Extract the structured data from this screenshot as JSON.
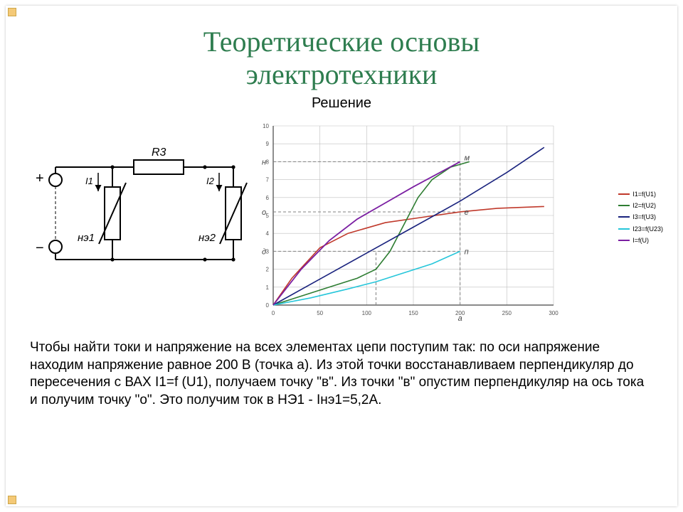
{
  "title": {
    "line1": "Теоретические основы",
    "line2": "электротехники",
    "color": "#2e7d4f",
    "fontsize": 40
  },
  "subtitle": "Решение",
  "circuit": {
    "labels": {
      "R3": "R3",
      "ne1": "нэ1",
      "ne2": "нэ2",
      "I1": "I1",
      "I2": "I2",
      "plus": "+",
      "minus": "−"
    },
    "stroke": "#000000",
    "stroke_width": 2
  },
  "chart": {
    "type": "line",
    "xlim": [
      0,
      300
    ],
    "ylim": [
      0,
      10
    ],
    "xtick_step": 50,
    "ytick_step": 1,
    "grid_color": "#bfbfbf",
    "axis_color": "#444444",
    "background_color": "#ffffff",
    "label_fontsize": 8,
    "dash_color": "#808080",
    "annotations": {
      "H": "н",
      "M": "м",
      "O": "о",
      "e": "е",
      "d": "д",
      "a": "а",
      "n": "п"
    },
    "dash_lines": [
      {
        "y": 8.0,
        "x_to": 200
      },
      {
        "y": 5.2,
        "x_to": 200
      },
      {
        "y": 3.0,
        "x_to": 200
      },
      {
        "x": 200,
        "y_to": 8.0
      },
      {
        "x": 110,
        "y_to": 3.0
      }
    ],
    "legend": [
      {
        "label": "I1=f(U1)",
        "color": "#c0392b"
      },
      {
        "label": "I2=f(U2)",
        "color": "#2e7d32"
      },
      {
        "label": "I3=f(U3)",
        "color": "#1a237e"
      },
      {
        "label": "I23=f(U23)",
        "color": "#26c6da"
      },
      {
        "label": "I=f(U)",
        "color": "#7b1fa2"
      }
    ],
    "series": [
      {
        "name": "I1",
        "color": "#c0392b",
        "width": 1.6,
        "points": [
          [
            0,
            0
          ],
          [
            20,
            1.5
          ],
          [
            50,
            3.2
          ],
          [
            80,
            4.0
          ],
          [
            120,
            4.6
          ],
          [
            160,
            4.9
          ],
          [
            200,
            5.2
          ],
          [
            240,
            5.4
          ],
          [
            290,
            5.5
          ]
        ]
      },
      {
        "name": "I2",
        "color": "#2e7d32",
        "width": 1.6,
        "points": [
          [
            0,
            0
          ],
          [
            30,
            0.5
          ],
          [
            60,
            1.0
          ],
          [
            90,
            1.5
          ],
          [
            110,
            2.0
          ],
          [
            125,
            3.0
          ],
          [
            140,
            4.5
          ],
          [
            155,
            6.0
          ],
          [
            170,
            7.0
          ],
          [
            190,
            7.7
          ],
          [
            210,
            8.0
          ]
        ]
      },
      {
        "name": "I3",
        "color": "#1a237e",
        "width": 1.6,
        "points": [
          [
            0,
            0
          ],
          [
            50,
            1.45
          ],
          [
            100,
            2.9
          ],
          [
            150,
            4.35
          ],
          [
            200,
            5.8
          ],
          [
            250,
            7.4
          ],
          [
            290,
            8.8
          ]
        ]
      },
      {
        "name": "I23",
        "color": "#26c6da",
        "width": 1.6,
        "points": [
          [
            0,
            0
          ],
          [
            40,
            0.4
          ],
          [
            80,
            0.9
          ],
          [
            110,
            1.3
          ],
          [
            140,
            1.8
          ],
          [
            170,
            2.3
          ],
          [
            200,
            3.0
          ]
        ]
      },
      {
        "name": "I",
        "color": "#7b1fa2",
        "width": 1.8,
        "points": [
          [
            0,
            0
          ],
          [
            30,
            2.0
          ],
          [
            60,
            3.6
          ],
          [
            90,
            4.8
          ],
          [
            120,
            5.7
          ],
          [
            150,
            6.6
          ],
          [
            175,
            7.3
          ],
          [
            200,
            8.0
          ]
        ]
      }
    ]
  },
  "body_text": "Чтобы найти токи и напряжение на всех элементах цепи поступим так: по оси напряжение находим напряжение равное 200 В (точка а). Из этой точки восстанавливаем перпендикуляр до пересечения с ВАХ I1=f (U1), получаем точку \"в\". Из точки \"в\" опустим перпендикуляр на ось тока и получим точку \"о\". Это получим ток в НЭ1 - Iнэ1=5,2А."
}
